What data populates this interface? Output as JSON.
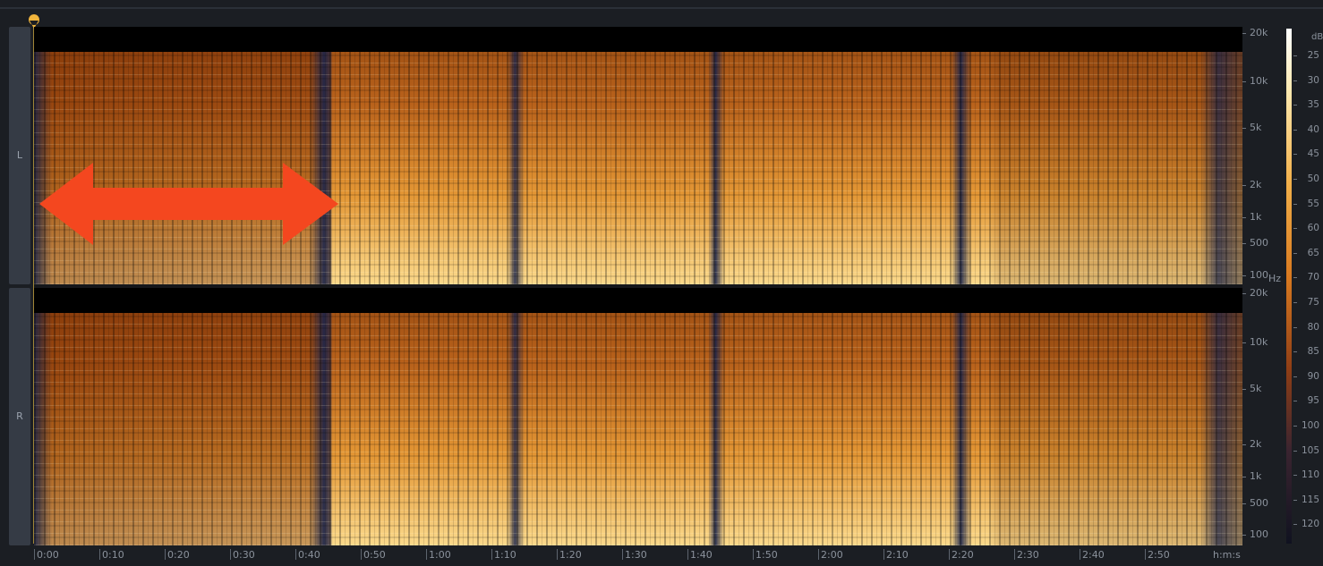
{
  "channels": [
    {
      "label": "L",
      "freq_labels": [
        "20k",
        "10k",
        "5k",
        "2k",
        "1k",
        "500",
        "100"
      ]
    },
    {
      "label": "R",
      "freq_labels": [
        "20k",
        "10k",
        "5k",
        "2k",
        "1k",
        "500",
        "100"
      ]
    }
  ],
  "freq_unit": "Hz",
  "time_labels": [
    "0:00",
    "0:10",
    "0:20",
    "0:30",
    "0:40",
    "0:50",
    "1:00",
    "1:10",
    "1:20",
    "1:30",
    "1:40",
    "1:50",
    "2:00",
    "2:10",
    "2:20",
    "2:30",
    "2:40",
    "2:50"
  ],
  "time_unit": "h:m:s",
  "db_scale": {
    "unit": "dB",
    "labels": [
      "25",
      "30",
      "35",
      "40",
      "45",
      "50",
      "55",
      "60",
      "65",
      "70",
      "75",
      "80",
      "85",
      "90",
      "95",
      "100",
      "105",
      "110",
      "115",
      "120"
    ]
  }
}
